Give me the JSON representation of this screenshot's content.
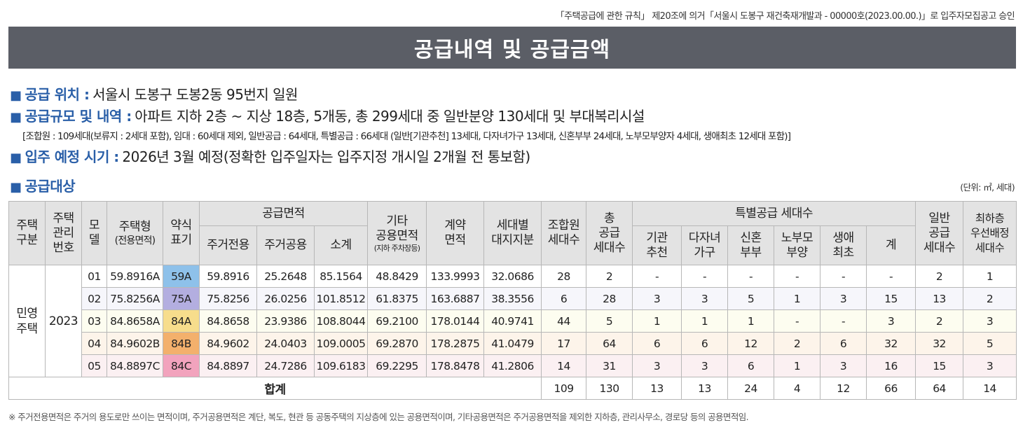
{
  "top_note": "「주택공급에 관한 규칙」 제20조에 의거「서울시 도봉구 재건축재개발과 - 00000호(2023.00.00.)」로 입주자모집공고 승인",
  "title": "공급내역 및 공급금액",
  "square_bullet": "■",
  "location": {
    "label": "공급 위치 :",
    "value": "서울시 도봉구 도봉2동 95번지 일원"
  },
  "scale": {
    "label": "공급규모 및 내역 :",
    "value": "아파트 지하 2층 ~ 지상 18층, 5개동, 총 299세대 중 일반분양 130세대 및 부대복리시설"
  },
  "scale_detail": "[조합원 : 109세대(보류지 : 2세대 포함), 임대 : 60세대 제외, 일반공급 : 64세대, 특별공급 : 66세대 (일반[기관추천] 13세대, 다자녀가구 13세대, 신혼부부 24세대,  노부모부양자 4세대, 생애최초 12세대 포함)]",
  "move_in": {
    "label": "입주 예정 시기 :",
    "value": "2026년 3월 예정(정확한 입주일자는 입주지정 개시일 2개월 전 통보함)"
  },
  "target_label": "공급대상",
  "unit_note": "(단위: ㎡, 세대)",
  "table": {
    "headers": {
      "housing_type": "주택\n구분",
      "mgmt_no": "주택\n관리\n번호",
      "model": "모\n델",
      "house_type": "주택형",
      "house_type_sub": "(전용면적)",
      "abbr": "약식\n표기",
      "supply_area": "공급면적",
      "private": "주거전용",
      "common": "주거공용",
      "subtotal": "소계",
      "other_common": "기타\n공용면적",
      "other_common_sub": "(지하 주차장등)",
      "contract_area": "계약\n면적",
      "land_share": "세대별\n대지지분",
      "members": "조합원\n세대수",
      "total_supply": "총\n공급\n세대수",
      "special": "특별공급 세대수",
      "inst": "기관\n추천",
      "multi_child": "다자녀\n가구",
      "newlywed": "신혼\n부부",
      "elderly": "노부모\n부양",
      "first_life": "생애\n최초",
      "special_total": "계",
      "general": "일반\n공급\n세대수",
      "lowest_floor": "최하층\n우선배정\n세대수"
    },
    "group_label": "민영\n주택",
    "mgmt_no": "2023",
    "rows": [
      {
        "model": "01",
        "type": "59.8916A",
        "abbr": "59A",
        "private": "59.8916",
        "common": "25.2648",
        "subtotal": "85.1564",
        "other": "48.8429",
        "contract": "133.9993",
        "land": "32.0686",
        "members": "28",
        "total": "2",
        "inst": "-",
        "multi": "-",
        "newlywed": "-",
        "elderly": "-",
        "first": "-",
        "sp_total": "-",
        "general": "2",
        "lowest": "1"
      },
      {
        "model": "02",
        "type": "75.8256A",
        "abbr": "75A",
        "private": "75.8256",
        "common": "26.0256",
        "subtotal": "101.8512",
        "other": "61.8375",
        "contract": "163.6887",
        "land": "38.3556",
        "members": "6",
        "total": "28",
        "inst": "3",
        "multi": "3",
        "newlywed": "5",
        "elderly": "1",
        "first": "3",
        "sp_total": "15",
        "general": "13",
        "lowest": "2"
      },
      {
        "model": "03",
        "type": "84.8658A",
        "abbr": "84A",
        "private": "84.8658",
        "common": "23.9386",
        "subtotal": "108.8044",
        "other": "69.2100",
        "contract": "178.0144",
        "land": "40.9741",
        "members": "44",
        "total": "5",
        "inst": "1",
        "multi": "1",
        "newlywed": "1",
        "elderly": "-",
        "first": "-",
        "sp_total": "3",
        "general": "2",
        "lowest": "3"
      },
      {
        "model": "04",
        "type": "84.9602B",
        "abbr": "84B",
        "private": "84.9602",
        "common": "24.0403",
        "subtotal": "109.0005",
        "other": "69.2870",
        "contract": "178.2875",
        "land": "41.0479",
        "members": "17",
        "total": "64",
        "inst": "6",
        "multi": "6",
        "newlywed": "12",
        "elderly": "2",
        "first": "6",
        "sp_total": "32",
        "general": "32",
        "lowest": "5"
      },
      {
        "model": "05",
        "type": "84.8897C",
        "abbr": "84C",
        "private": "84.8897",
        "common": "24.7286",
        "subtotal": "109.6183",
        "other": "69.2295",
        "contract": "178.8478",
        "land": "41.2806",
        "members": "14",
        "total": "31",
        "inst": "3",
        "multi": "3",
        "newlywed": "6",
        "elderly": "1",
        "first": "3",
        "sp_total": "16",
        "general": "15",
        "lowest": "3"
      }
    ],
    "total": {
      "label": "합계",
      "members": "109",
      "total": "130",
      "inst": "13",
      "multi": "13",
      "newlywed": "24",
      "elderly": "4",
      "first": "12",
      "sp_total": "66",
      "general": "64",
      "lowest": "14"
    }
  },
  "footnote": "※ 주거전용면적은 주거의 용도로만 쓰이는 면적이며, 주거공용면적은 계단, 복도, 현관 등 공동주택의 지상층에 있는 공용면적이며, 기타공용면적은 주거공용면적을 제외한 지하층, 관리사무소, 경로당 등의 공용면적임."
}
